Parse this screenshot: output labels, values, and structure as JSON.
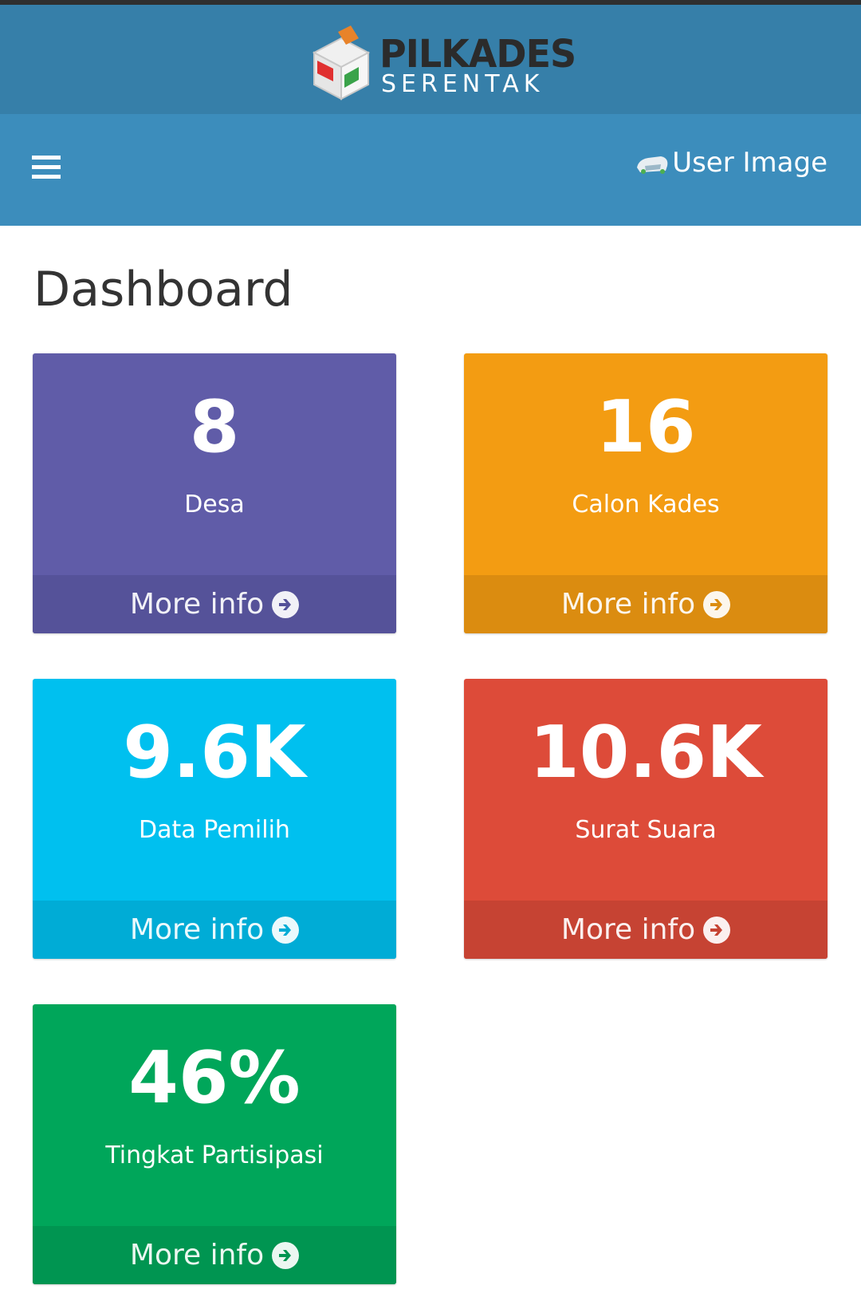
{
  "header": {
    "logo_line1": "PILKADES",
    "logo_line2": "SERENTAK",
    "user_image_alt": "User Image",
    "colors": {
      "logo_bar": "#367fa9",
      "navbar": "#3c8dbc"
    }
  },
  "page": {
    "title": "Dashboard"
  },
  "boxes": [
    {
      "value": "8",
      "label": "Desa",
      "footer": "More info",
      "color": "#605ca8"
    },
    {
      "value": "16",
      "label": "Calon Kades",
      "footer": "More info",
      "color": "#f39c12"
    },
    {
      "value": "9.6K",
      "label": "Data Pemilih",
      "footer": "More info",
      "color": "#00c0ef"
    },
    {
      "value": "10.6K",
      "label": "Surat Suara",
      "footer": "More info",
      "color": "#dd4b39"
    },
    {
      "value": "46%",
      "label": "Tingkat Partisipasi",
      "footer": "More info",
      "color": "#00a65a"
    }
  ],
  "icons": {
    "menu": "hamburger-menu-icon",
    "footer_arrow": "arrow-circle-right-icon",
    "ballot": "ballot-box-logo"
  }
}
